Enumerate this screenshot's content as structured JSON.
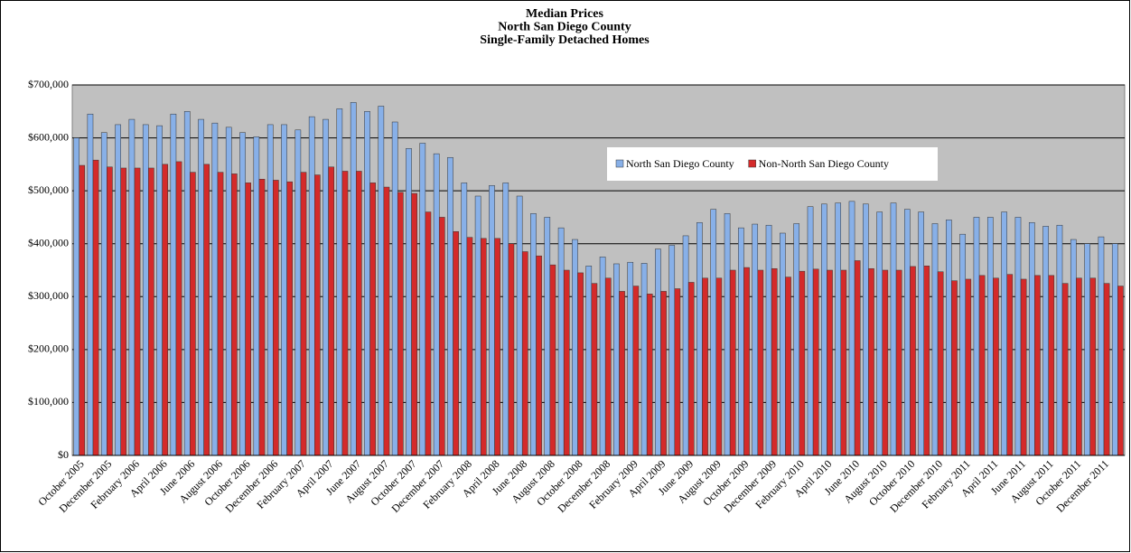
{
  "chart_data": {
    "type": "bar",
    "title": [
      "Median Prices",
      "North San Diego County",
      "Single-Family Detached Homes"
    ],
    "categories": [
      "October 2005",
      null,
      "December 2005",
      null,
      "February 2006",
      null,
      "April 2006",
      null,
      "June 2006",
      null,
      "August 2006",
      null,
      "October 2006",
      null,
      "December 2006",
      null,
      "February 2007",
      null,
      "April 2007",
      null,
      "June 2007",
      null,
      "August 2007",
      null,
      "October 2007",
      null,
      "December 2007",
      null,
      "February 2008",
      null,
      "April 2008",
      null,
      "June 2008",
      null,
      "August 2008",
      null,
      "October 2008",
      null,
      "December 2008",
      null,
      "February 2009",
      null,
      "April 2009",
      null,
      "June 2009",
      null,
      "August 2009",
      null,
      "October 2009",
      null,
      "December 2009",
      null,
      "February 2010",
      null,
      "April 2010",
      null,
      "June 2010",
      null,
      "August 2010",
      null,
      "October 2010",
      null,
      "December 2010",
      null,
      "February 2011",
      null,
      "April 2011",
      null,
      "June 2011",
      null,
      "August 2011",
      null,
      "October 2011",
      null,
      "December 2011",
      null
    ],
    "series": [
      {
        "name": "North San Diego County",
        "color": "#88b0e8",
        "values": [
          600000,
          645000,
          610000,
          625000,
          635000,
          625000,
          623000,
          645000,
          650000,
          635000,
          628000,
          620000,
          610000,
          602000,
          625000,
          625000,
          615000,
          640000,
          635000,
          655000,
          667000,
          650000,
          660000,
          630000,
          580000,
          590000,
          570000,
          563000,
          515000,
          490000,
          510000,
          515000,
          490000,
          457000,
          450000,
          430000,
          408000,
          358000,
          375000,
          362000,
          365000,
          363000,
          390000,
          397000,
          415000,
          440000,
          465000,
          457000,
          430000,
          437000,
          435000,
          420000,
          438000,
          470000,
          475000,
          477000,
          480000,
          475000,
          460000,
          477000,
          465000,
          460000,
          438000,
          445000,
          418000,
          450000,
          450000,
          460000,
          450000,
          440000,
          433000,
          435000,
          408000,
          400000,
          413000,
          400000
        ]
      },
      {
        "name": "Non-North San Diego County",
        "color": "#d42a2a",
        "values": [
          548000,
          558000,
          545000,
          543000,
          543000,
          543000,
          550000,
          555000,
          535000,
          550000,
          535000,
          532000,
          515000,
          522000,
          520000,
          517000,
          535000,
          530000,
          545000,
          537000,
          537000,
          515000,
          507000,
          497000,
          495000,
          460000,
          450000,
          423000,
          412000,
          410000,
          410000,
          400000,
          385000,
          377000,
          360000,
          350000,
          345000,
          325000,
          335000,
          310000,
          320000,
          305000,
          310000,
          315000,
          327000,
          335000,
          335000,
          350000,
          355000,
          350000,
          353000,
          337000,
          348000,
          352000,
          350000,
          350000,
          368000,
          353000,
          350000,
          350000,
          357000,
          358000,
          347000,
          330000,
          333000,
          340000,
          335000,
          342000,
          333000,
          340000,
          340000,
          325000,
          335000,
          335000,
          325000,
          320000
        ]
      }
    ],
    "ylim": [
      0,
      700000
    ],
    "yticks": [
      {
        "value": 0,
        "label": "$0"
      },
      {
        "value": 100000,
        "label": "$100,000"
      },
      {
        "value": 200000,
        "label": "$200,000"
      },
      {
        "value": 300000,
        "label": "$300,000"
      },
      {
        "value": 400000,
        "label": "$400,000"
      },
      {
        "value": 500000,
        "label": "$500,000"
      },
      {
        "value": 600000,
        "label": "$600,000"
      },
      {
        "value": 700000,
        "label": "$700,000"
      }
    ],
    "grid": true
  }
}
